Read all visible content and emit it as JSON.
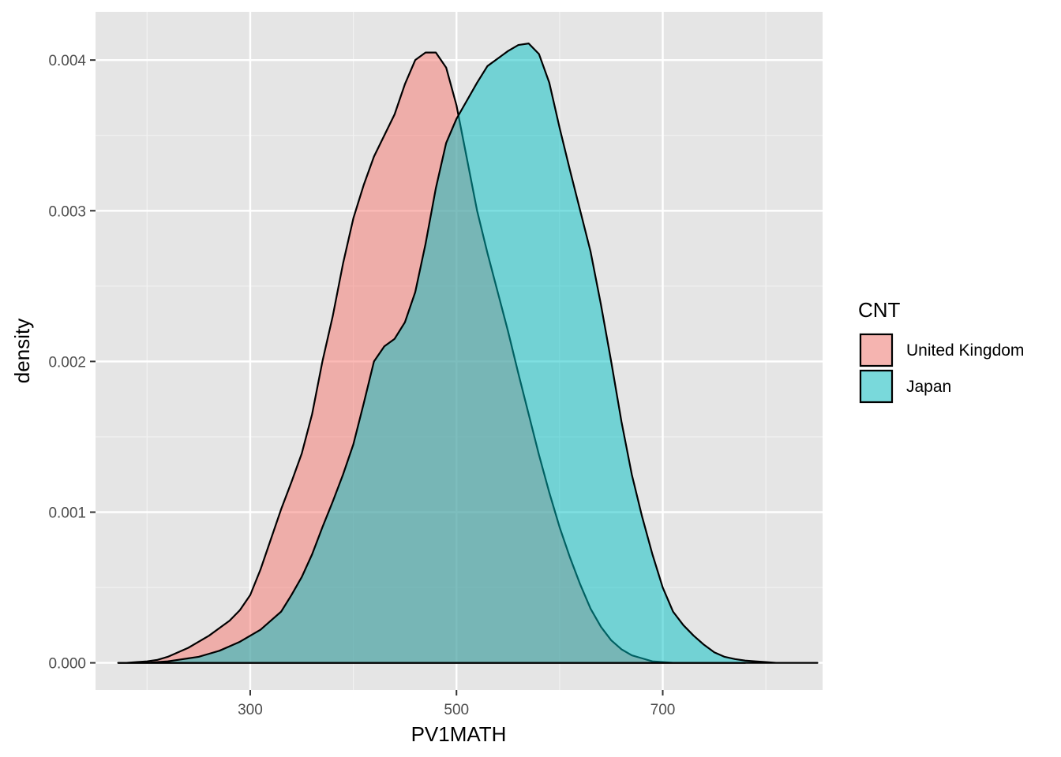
{
  "chart_data": {
    "type": "area",
    "subtype": "density",
    "xlabel": "PV1MATH",
    "ylabel": "density",
    "xlim": [
      150,
      855
    ],
    "ylim": [
      -0.00018,
      0.00432
    ],
    "x_ticks": [
      300,
      500,
      700
    ],
    "x_tick_labels": [
      "300",
      "500",
      "700"
    ],
    "x_minor_ticks": [
      200,
      400,
      600,
      800
    ],
    "y_ticks": [
      0,
      0.001,
      0.002,
      0.003,
      0.004
    ],
    "y_tick_labels": [
      "0.000",
      "0.001",
      "0.002",
      "0.003",
      "0.004"
    ],
    "y_minor_ticks": [
      0.0005,
      0.0015,
      0.0025,
      0.0035
    ],
    "grid": true,
    "background": "#e5e5e5",
    "legend": {
      "title": "CNT",
      "position": "right"
    },
    "series": [
      {
        "name": "United Kingdom",
        "color": "#F8766D",
        "x": [
          172,
          180,
          190,
          200,
          210,
          220,
          230,
          240,
          250,
          260,
          270,
          280,
          290,
          300,
          310,
          320,
          330,
          340,
          350,
          360,
          370,
          380,
          390,
          400,
          410,
          420,
          430,
          440,
          450,
          460,
          470,
          480,
          490,
          500,
          510,
          520,
          530,
          540,
          550,
          560,
          570,
          580,
          590,
          600,
          610,
          620,
          630,
          640,
          650,
          660,
          670,
          680,
          690,
          700,
          710,
          720,
          730,
          740,
          750,
          760,
          770,
          780
        ],
        "y": [
          0.0,
          0.0,
          5e-06,
          1e-05,
          2e-05,
          4e-05,
          7e-05,
          0.0001,
          0.00014,
          0.00018,
          0.00023,
          0.00028,
          0.00035,
          0.00045,
          0.00062,
          0.00082,
          0.00102,
          0.0012,
          0.00139,
          0.00165,
          0.002,
          0.0023,
          0.00265,
          0.00295,
          0.00317,
          0.00336,
          0.0035,
          0.00364,
          0.00384,
          0.004,
          0.00405,
          0.00405,
          0.00395,
          0.0037,
          0.00335,
          0.003,
          0.00272,
          0.00246,
          0.0022,
          0.00192,
          0.00165,
          0.00138,
          0.00113,
          0.0009,
          0.0007,
          0.00052,
          0.00036,
          0.00024,
          0.00015,
          9e-05,
          5e-05,
          3e-05,
          1e-05,
          5e-06,
          0.0,
          0.0,
          0.0,
          0.0,
          0.0,
          0.0,
          0.0,
          0.0
        ]
      },
      {
        "name": "Japan",
        "color": "#00BFC4",
        "x": [
          172,
          180,
          190,
          200,
          210,
          220,
          230,
          240,
          250,
          260,
          270,
          280,
          290,
          300,
          310,
          320,
          330,
          340,
          350,
          360,
          370,
          380,
          390,
          400,
          410,
          420,
          430,
          440,
          450,
          460,
          470,
          480,
          490,
          500,
          510,
          520,
          530,
          540,
          550,
          560,
          570,
          580,
          590,
          600,
          610,
          620,
          630,
          640,
          650,
          660,
          670,
          680,
          690,
          700,
          710,
          720,
          730,
          740,
          750,
          760,
          770,
          780,
          790,
          800,
          810,
          820,
          830,
          840,
          850
        ],
        "y": [
          0.0,
          0.0,
          0.0,
          0.0,
          5e-06,
          1e-05,
          2e-05,
          3e-05,
          4e-05,
          6e-05,
          8e-05,
          0.00011,
          0.00014,
          0.00018,
          0.00022,
          0.00028,
          0.00034,
          0.00045,
          0.00057,
          0.00072,
          0.0009,
          0.00107,
          0.00125,
          0.00145,
          0.00172,
          0.002,
          0.0021,
          0.00215,
          0.00226,
          0.00246,
          0.00278,
          0.00315,
          0.00345,
          0.00361,
          0.00373,
          0.00385,
          0.00396,
          0.00401,
          0.00406,
          0.0041,
          0.00411,
          0.00404,
          0.00385,
          0.00355,
          0.00327,
          0.003,
          0.00273,
          0.00238,
          0.002,
          0.0016,
          0.00125,
          0.00097,
          0.00072,
          0.0005,
          0.00034,
          0.00025,
          0.00018,
          0.00012,
          7e-05,
          4e-05,
          2.5e-05,
          1.5e-05,
          1e-05,
          5e-06,
          0.0,
          0.0,
          0.0,
          0.0,
          0.0
        ]
      }
    ]
  }
}
